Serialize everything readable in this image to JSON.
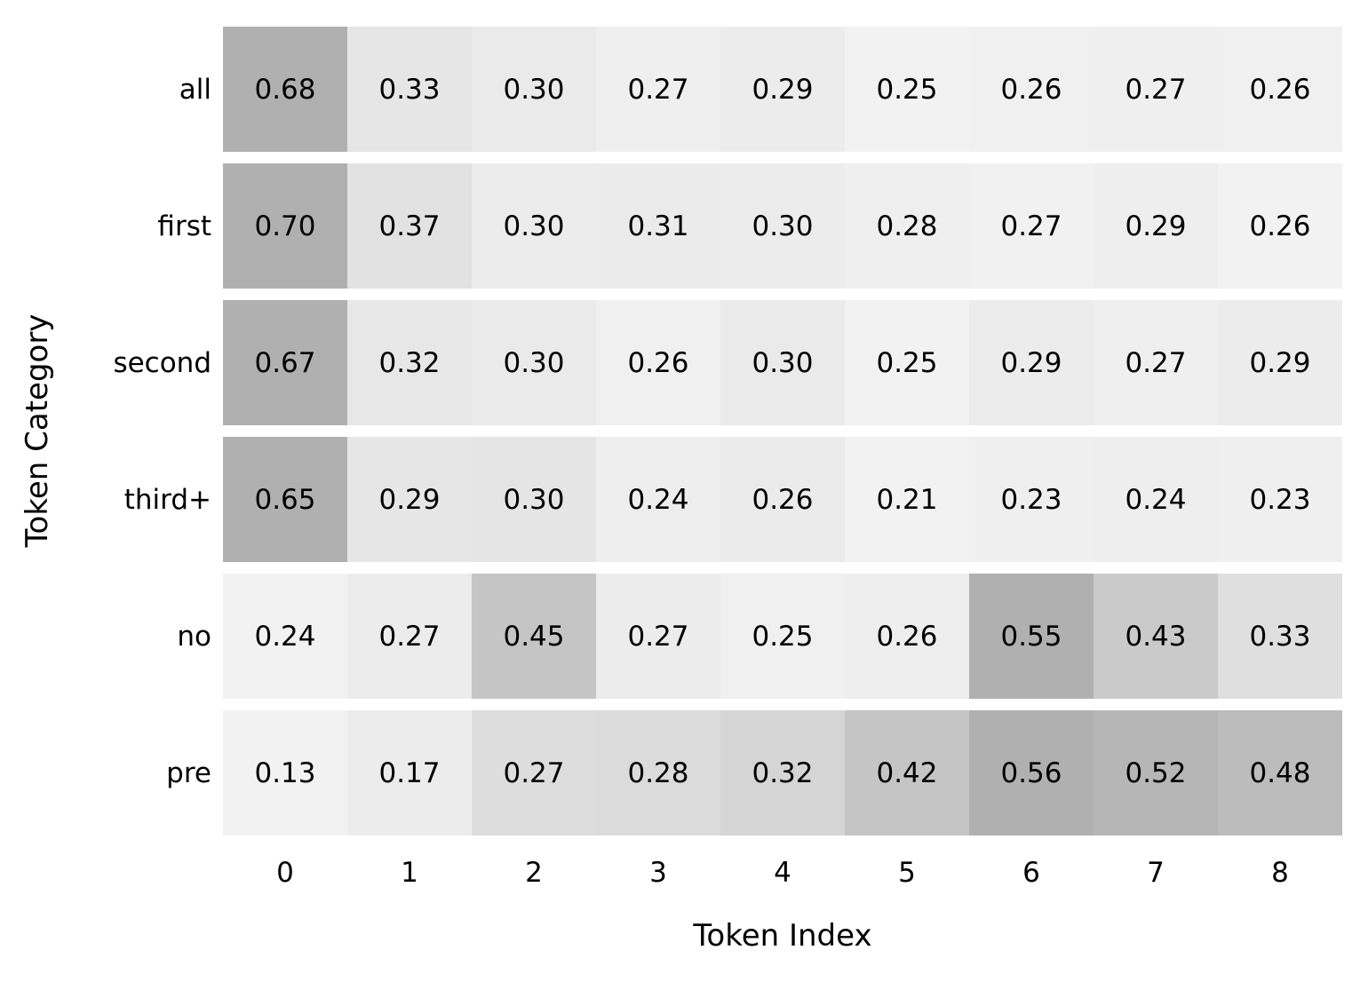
{
  "chart_data": {
    "type": "heatmap",
    "xlabel": "Token Index",
    "ylabel": "Token Category",
    "x_ticks": [
      "0",
      "1",
      "2",
      "3",
      "4",
      "5",
      "6",
      "7",
      "8"
    ],
    "y_ticks": [
      "all",
      "first",
      "second",
      "third+",
      "no",
      "pre"
    ],
    "rows": [
      {
        "label": "all",
        "values": [
          0.68,
          0.33,
          0.3,
          0.27,
          0.29,
          0.25,
          0.26,
          0.27,
          0.26
        ]
      },
      {
        "label": "first",
        "values": [
          0.7,
          0.37,
          0.3,
          0.31,
          0.3,
          0.28,
          0.27,
          0.29,
          0.26
        ]
      },
      {
        "label": "second",
        "values": [
          0.67,
          0.32,
          0.3,
          0.26,
          0.3,
          0.25,
          0.29,
          0.27,
          0.29
        ]
      },
      {
        "label": "third+",
        "values": [
          0.65,
          0.29,
          0.3,
          0.24,
          0.26,
          0.21,
          0.23,
          0.24,
          0.23
        ]
      },
      {
        "label": "no",
        "values": [
          0.24,
          0.27,
          0.45,
          0.27,
          0.25,
          0.26,
          0.55,
          0.43,
          0.33
        ]
      },
      {
        "label": "pre",
        "values": [
          0.13,
          0.17,
          0.27,
          0.28,
          0.32,
          0.42,
          0.56,
          0.52,
          0.48
        ]
      }
    ],
    "value_format_decimals": 2,
    "layout": {
      "grid": false,
      "legend": "none",
      "row_normalized_colors": true
    },
    "colors": {
      "background": "#ffffff",
      "cell_light": "#f2f2f2",
      "cell_dark": "#b0b0b0",
      "light_level": 242,
      "dark_level": 176,
      "text": "#000000",
      "row_gap": "#ffffff"
    }
  }
}
